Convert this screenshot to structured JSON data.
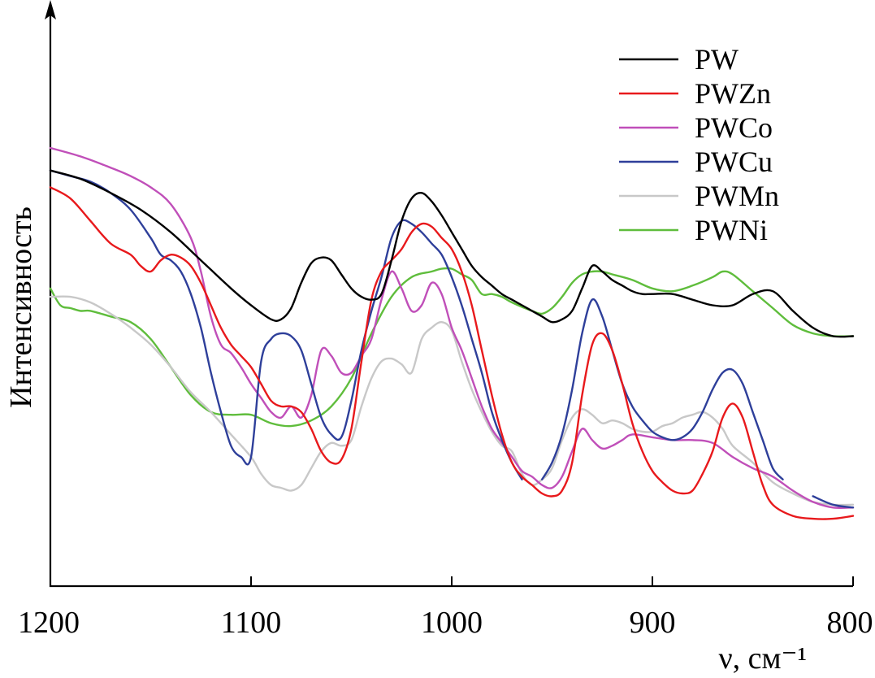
{
  "chart_data": {
    "type": "line",
    "title": "",
    "xlabel": "ν, см⁻¹",
    "ylabel": "Интенсивность",
    "xlim": [
      1200,
      800
    ],
    "ylim": [
      0,
      100
    ],
    "x_ticks": [
      1200,
      1100,
      1000,
      900,
      800
    ],
    "x_tick_labels": [
      "1200",
      "1100",
      "1000",
      "900",
      "800"
    ],
    "y_ticks_shown": false,
    "legend_position": "top-right",
    "grid": false,
    "series": [
      {
        "name": "PW",
        "color": "#000000",
        "x": [
          1200,
          1185,
          1170,
          1155,
          1140,
          1125,
          1110,
          1100,
          1090,
          1085,
          1080,
          1075,
          1070,
          1065,
          1060,
          1055,
          1050,
          1045,
          1040,
          1035,
          1030,
          1025,
          1020,
          1015,
          1010,
          1005,
          1000,
          995,
          990,
          985,
          980,
          975,
          970,
          965,
          960,
          955,
          950,
          945,
          940,
          935,
          930,
          925,
          920,
          915,
          910,
          905,
          900,
          890,
          880,
          870,
          860,
          850,
          840,
          830,
          820,
          810,
          800
        ],
        "values": [
          74,
          72.5,
          70,
          67,
          63,
          58,
          53,
          50,
          47.5,
          47.5,
          49.5,
          54,
          57.5,
          58.5,
          58,
          55.5,
          53,
          51.5,
          51,
          52,
          58,
          65,
          69,
          70,
          68.5,
          66,
          63,
          60,
          57,
          55,
          53.5,
          52,
          51,
          50,
          49,
          48,
          47,
          47.5,
          49,
          53,
          57,
          56,
          54.5,
          53.5,
          52.5,
          52,
          52,
          52,
          51,
          50,
          50,
          52,
          52.5,
          49,
          46,
          44.5,
          44.5
        ]
      },
      {
        "name": "PWZn",
        "color": "#e8191c",
        "x": [
          1200,
          1190,
          1180,
          1170,
          1160,
          1155,
          1150,
          1145,
          1140,
          1135,
          1130,
          1125,
          1120,
          1115,
          1110,
          1105,
          1100,
          1095,
          1090,
          1085,
          1080,
          1075,
          1070,
          1065,
          1060,
          1055,
          1050,
          1045,
          1040,
          1035,
          1030,
          1025,
          1020,
          1015,
          1010,
          1005,
          1000,
          995,
          990,
          985,
          980,
          975,
          970,
          965,
          960,
          955,
          950,
          945,
          940,
          935,
          930,
          925,
          920,
          915,
          910,
          905,
          900,
          895,
          890,
          885,
          880,
          875,
          870,
          865,
          860,
          855,
          850,
          845,
          840,
          830,
          820,
          810,
          800
        ],
        "values": [
          71,
          69,
          65,
          61,
          59,
          57,
          56,
          58,
          59,
          58.5,
          57,
          54,
          50,
          46,
          43,
          41,
          39,
          36,
          33,
          32,
          32,
          31,
          28,
          24,
          22,
          22.5,
          28,
          40,
          51,
          56,
          58,
          60,
          63,
          64.5,
          64,
          62,
          60,
          56,
          50,
          42,
          34,
          27,
          22,
          19.5,
          18,
          16.5,
          16,
          17,
          22,
          34,
          43,
          45,
          42,
          36,
          29,
          24,
          20.5,
          18.5,
          17,
          16.5,
          17,
          20,
          24,
          30,
          32.5,
          30,
          24,
          18,
          14.5,
          12.5,
          12,
          12,
          12.5
        ]
      },
      {
        "name": "PWCo",
        "color": "#c04fb9",
        "x": [
          1200,
          1185,
          1170,
          1160,
          1150,
          1140,
          1130,
          1125,
          1120,
          1115,
          1110,
          1105,
          1100,
          1095,
          1090,
          1085,
          1080,
          1075,
          1070,
          1065,
          1060,
          1055,
          1050,
          1045,
          1040,
          1035,
          1030,
          1025,
          1020,
          1015,
          1010,
          1005,
          1000,
          995,
          990,
          985,
          980,
          975,
          970,
          965,
          960,
          955,
          950,
          945,
          940,
          935,
          930,
          925,
          920,
          915,
          910,
          900,
          890,
          880,
          870,
          860,
          850,
          840,
          830,
          820,
          810,
          800
        ],
        "values": [
          78,
          76.5,
          74.5,
          73,
          71,
          68,
          62,
          56,
          48,
          43,
          41.5,
          39,
          36,
          33.5,
          31,
          30,
          32,
          30,
          34,
          42,
          41,
          38,
          38,
          41,
          44,
          51,
          56,
          53,
          49,
          50,
          54,
          52,
          46,
          42,
          37,
          32,
          28,
          25.5,
          23,
          20.5,
          19.5,
          18,
          17.5,
          19.5,
          24,
          28,
          26,
          24.5,
          25,
          26,
          27,
          26.5,
          26,
          26,
          25.5,
          23,
          21,
          19.5,
          17,
          15,
          14,
          14
        ]
      },
      {
        "name": "PWCu",
        "color": "#2e3f9a",
        "x": [
          1200,
          1190,
          1180,
          1170,
          1160,
          1150,
          1145,
          1140,
          1135,
          1130,
          1125,
          1120,
          1115,
          1110,
          1105,
          1100,
          1095,
          1090,
          1085,
          1080,
          1075,
          1070,
          1065,
          1060,
          1055,
          1050,
          1045,
          1040,
          1035,
          1030,
          1025,
          1020,
          1015,
          1010,
          1005,
          1000,
          995,
          990,
          985,
          980,
          975,
          970,
          965,
          960,
          955,
          950,
          945,
          940,
          935,
          930,
          925,
          920,
          915,
          910,
          905,
          900,
          895,
          890,
          885,
          880,
          875,
          870,
          865,
          860,
          855,
          850,
          845,
          840,
          835,
          825,
          820,
          810,
          800
        ],
        "values": [
          74,
          73,
          72,
          70,
          67,
          62,
          59,
          58,
          56,
          52,
          46,
          38,
          31,
          25,
          23,
          23,
          40,
          44,
          45,
          44.5,
          42,
          36,
          30,
          27,
          26.5,
          33,
          42,
          49,
          55,
          62,
          65,
          64.5,
          63,
          61,
          59,
          55,
          50,
          44,
          38,
          31,
          26,
          22,
          19,
          null,
          19,
          22,
          27,
          35,
          45,
          51,
          48,
          42,
          36,
          32,
          29.5,
          27.5,
          26.5,
          26,
          26.5,
          28,
          31,
          35,
          38,
          38.5,
          36,
          31,
          26,
          21,
          19,
          null,
          16,
          14.5,
          14
        ]
      },
      {
        "name": "PWMn",
        "color": "#c8c8c8",
        "x": [
          1200,
          1190,
          1180,
          1170,
          1160,
          1150,
          1140,
          1130,
          1120,
          1110,
          1100,
          1095,
          1090,
          1085,
          1080,
          1075,
          1070,
          1065,
          1060,
          1055,
          1050,
          1045,
          1040,
          1035,
          1030,
          1025,
          1020,
          1015,
          1010,
          1005,
          1000,
          995,
          990,
          985,
          980,
          975,
          970,
          965,
          960,
          955,
          950,
          945,
          940,
          935,
          930,
          925,
          920,
          915,
          910,
          905,
          900,
          895,
          890,
          885,
          880,
          875,
          870,
          865,
          860,
          850,
          840,
          830,
          820,
          810,
          800
        ],
        "values": [
          51.5,
          51.5,
          50.5,
          48.5,
          46,
          43,
          39,
          34.5,
          31,
          27,
          23,
          20,
          18,
          17.5,
          17,
          18,
          21,
          24,
          25.5,
          25,
          26,
          32,
          37,
          40,
          40.5,
          39.5,
          38,
          44,
          46,
          47,
          45.5,
          40,
          35,
          31,
          27.5,
          25,
          24,
          20,
          18,
          19,
          21,
          26,
          30,
          31.5,
          30.5,
          29,
          29.5,
          29,
          28,
          27.5,
          27.5,
          28.5,
          29,
          30,
          30.5,
          31,
          30,
          28,
          25,
          22,
          18.5,
          16.5,
          15,
          14.5,
          14.5
        ]
      },
      {
        "name": "PWNi",
        "color": "#5fbd3c",
        "x": [
          1200,
          1195,
          1190,
          1185,
          1180,
          1170,
          1160,
          1150,
          1140,
          1130,
          1120,
          1110,
          1100,
          1090,
          1080,
          1070,
          1060,
          1050,
          1040,
          1030,
          1020,
          1010,
          1005,
          1000,
          995,
          990,
          985,
          980,
          975,
          970,
          960,
          955,
          950,
          945,
          940,
          935,
          930,
          925,
          920,
          910,
          900,
          890,
          880,
          870,
          865,
          860,
          850,
          840,
          830,
          820,
          810,
          800
        ],
        "values": [
          53,
          50,
          49.5,
          49,
          49,
          48,
          47,
          44,
          39,
          34,
          31,
          30.5,
          30.5,
          29,
          28.5,
          29.5,
          32,
          37,
          45,
          51.5,
          55,
          56,
          56.5,
          56.5,
          55.5,
          54.5,
          52,
          52,
          51.5,
          50.5,
          49,
          48.5,
          49.5,
          51.5,
          54,
          55.5,
          56,
          56,
          55.5,
          54.5,
          53,
          52.5,
          53.5,
          55,
          56,
          55.5,
          52.5,
          49.5,
          46.5,
          45,
          44.5,
          44.5
        ]
      }
    ]
  }
}
